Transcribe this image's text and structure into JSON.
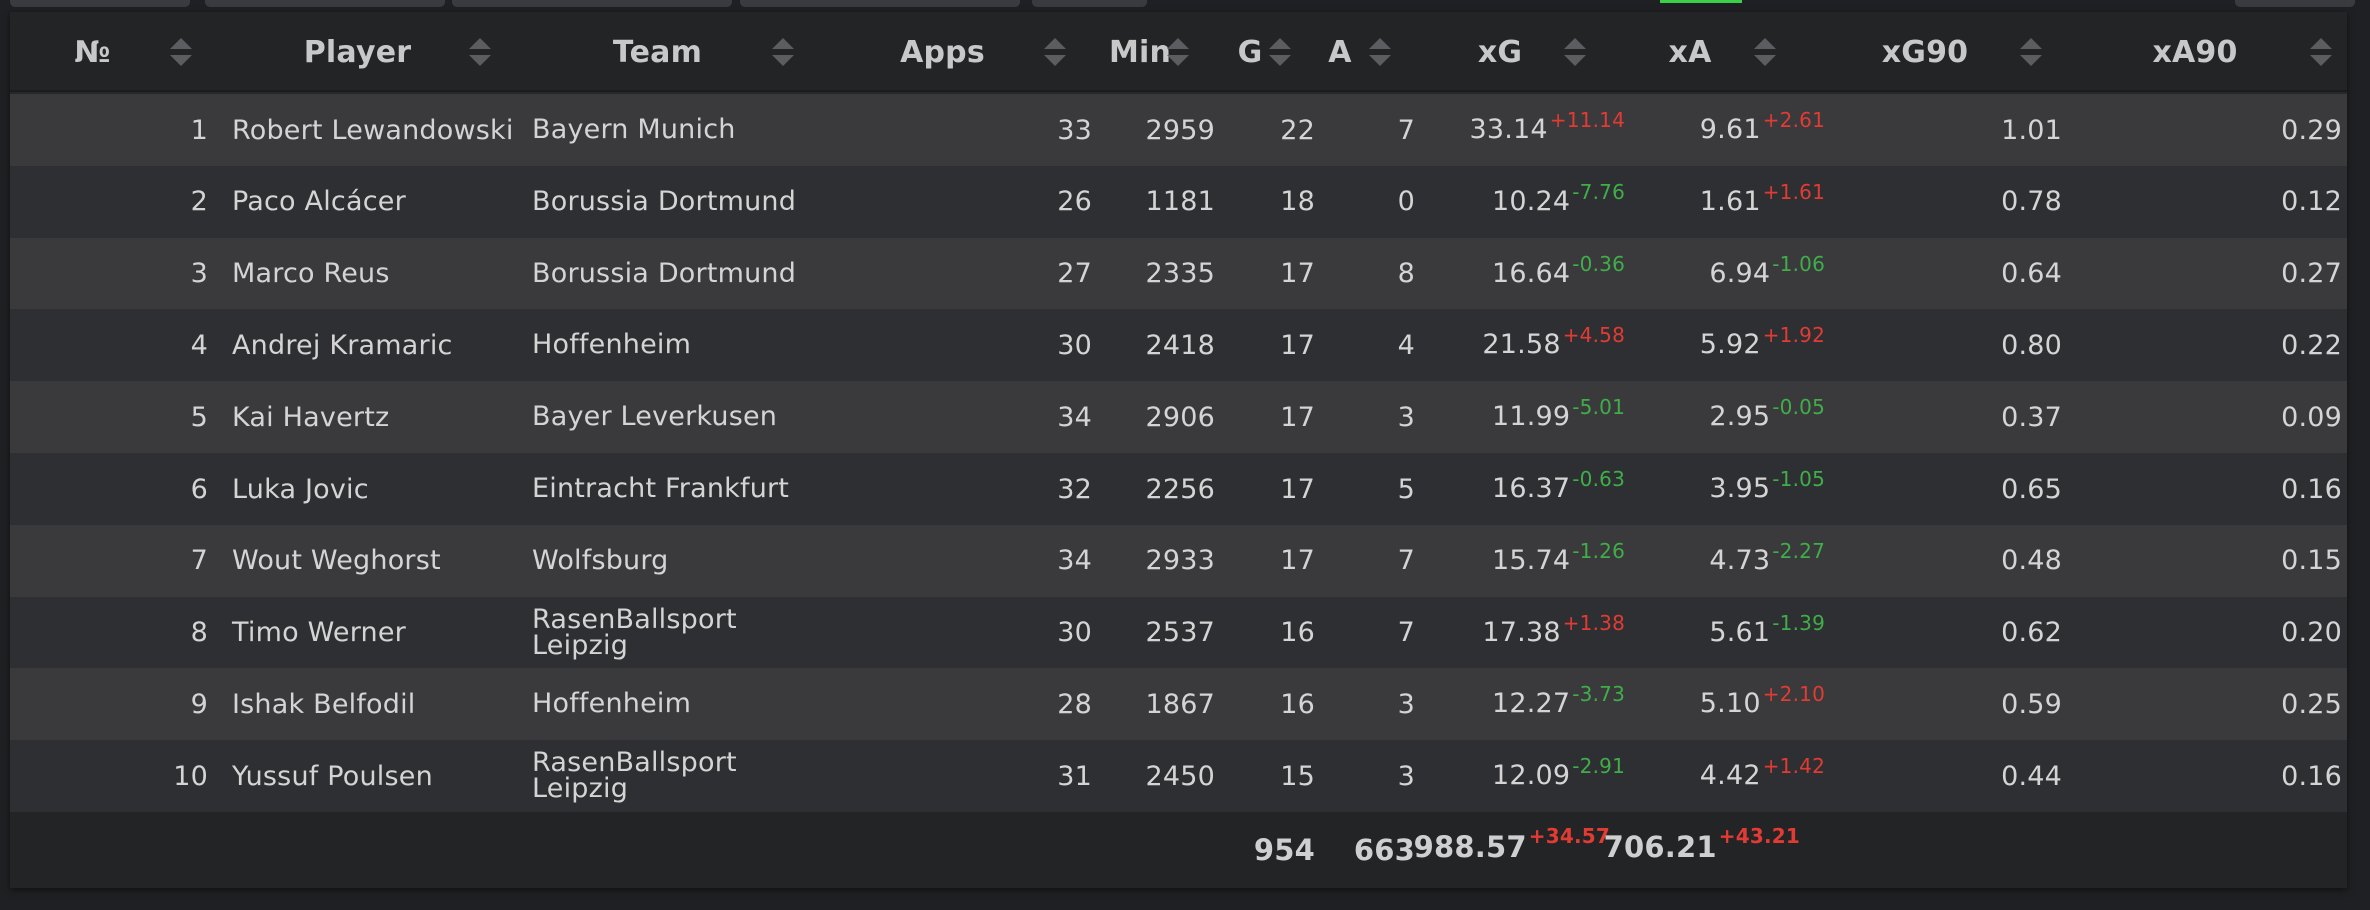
{
  "columns": {
    "num": "№",
    "player": "Player",
    "team": "Team",
    "apps": "Apps",
    "min": "Min",
    "g": "G",
    "a": "A",
    "xg": "xG",
    "xa": "xA",
    "xg90": "xG90",
    "xa90": "xA90"
  },
  "rows": [
    {
      "num": "1",
      "player": "Robert Lewandowski",
      "team": "Bayern Munich",
      "apps": "33",
      "min": "2959",
      "g": "22",
      "a": "7",
      "xg": "33.14",
      "xg_delta": "+11.14",
      "xa": "9.61",
      "xa_delta": "+2.61",
      "xg90": "1.01",
      "xa90": "0.29"
    },
    {
      "num": "2",
      "player": "Paco Alcácer",
      "team": "Borussia Dortmund",
      "apps": "26",
      "min": "1181",
      "g": "18",
      "a": "0",
      "xg": "10.24",
      "xg_delta": "-7.76",
      "xa": "1.61",
      "xa_delta": "+1.61",
      "xg90": "0.78",
      "xa90": "0.12"
    },
    {
      "num": "3",
      "player": "Marco Reus",
      "team": "Borussia Dortmund",
      "apps": "27",
      "min": "2335",
      "g": "17",
      "a": "8",
      "xg": "16.64",
      "xg_delta": "-0.36",
      "xa": "6.94",
      "xa_delta": "-1.06",
      "xg90": "0.64",
      "xa90": "0.27"
    },
    {
      "num": "4",
      "player": "Andrej Kramaric",
      "team": "Hoffenheim",
      "apps": "30",
      "min": "2418",
      "g": "17",
      "a": "4",
      "xg": "21.58",
      "xg_delta": "+4.58",
      "xa": "5.92",
      "xa_delta": "+1.92",
      "xg90": "0.80",
      "xa90": "0.22"
    },
    {
      "num": "5",
      "player": "Kai Havertz",
      "team": "Bayer Leverkusen",
      "apps": "34",
      "min": "2906",
      "g": "17",
      "a": "3",
      "xg": "11.99",
      "xg_delta": "-5.01",
      "xa": "2.95",
      "xa_delta": "-0.05",
      "xg90": "0.37",
      "xa90": "0.09"
    },
    {
      "num": "6",
      "player": "Luka Jovic",
      "team": "Eintracht Frankfurt",
      "apps": "32",
      "min": "2256",
      "g": "17",
      "a": "5",
      "xg": "16.37",
      "xg_delta": "-0.63",
      "xa": "3.95",
      "xa_delta": "-1.05",
      "xg90": "0.65",
      "xa90": "0.16"
    },
    {
      "num": "7",
      "player": "Wout Weghorst",
      "team": "Wolfsburg",
      "apps": "34",
      "min": "2933",
      "g": "17",
      "a": "7",
      "xg": "15.74",
      "xg_delta": "-1.26",
      "xa": "4.73",
      "xa_delta": "-2.27",
      "xg90": "0.48",
      "xa90": "0.15"
    },
    {
      "num": "8",
      "player": "Timo Werner",
      "team": "RasenBallsport\nLeipzig",
      "apps": "30",
      "min": "2537",
      "g": "16",
      "a": "7",
      "xg": "17.38",
      "xg_delta": "+1.38",
      "xa": "5.61",
      "xa_delta": "-1.39",
      "xg90": "0.62",
      "xa90": "0.20"
    },
    {
      "num": "9",
      "player": "Ishak Belfodil",
      "team": "Hoffenheim",
      "apps": "28",
      "min": "1867",
      "g": "16",
      "a": "3",
      "xg": "12.27",
      "xg_delta": "-3.73",
      "xa": "5.10",
      "xa_delta": "+2.10",
      "xg90": "0.59",
      "xa90": "0.25"
    },
    {
      "num": "10",
      "player": "Yussuf Poulsen",
      "team": "RasenBallsport\nLeipzig",
      "apps": "31",
      "min": "2450",
      "g": "15",
      "a": "3",
      "xg": "12.09",
      "xg_delta": "-2.91",
      "xa": "4.42",
      "xa_delta": "+1.42",
      "xg90": "0.44",
      "xa90": "0.16"
    }
  ],
  "totals": {
    "g": "954",
    "a": "663",
    "xg": "988.57",
    "xg_delta": "+34.57",
    "xa": "706.21",
    "xa_delta": "+43.21"
  },
  "colors": {
    "positive_delta": "#e23b33",
    "negative_delta": "#3fae49",
    "accent": "#3bd04a"
  }
}
